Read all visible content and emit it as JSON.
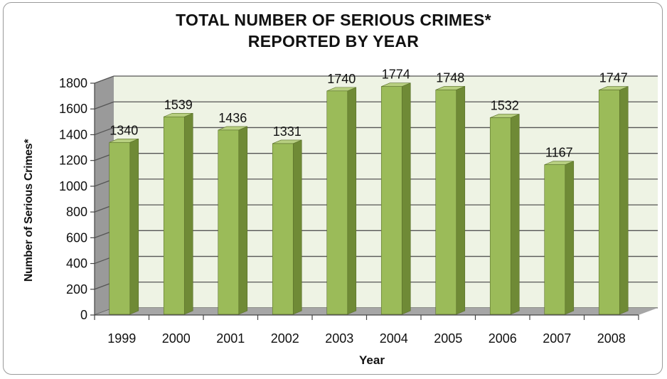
{
  "chart_data": {
    "type": "bar",
    "title": "TOTAL NUMBER OF SERIOUS CRIMES*",
    "subtitle": "REPORTED BY YEAR",
    "xlabel": "Year",
    "ylabel": "Number of Serious Crimes*",
    "categories": [
      "1999",
      "2000",
      "2001",
      "2002",
      "2003",
      "2004",
      "2005",
      "2006",
      "2007",
      "2008"
    ],
    "values": [
      1340,
      1539,
      1436,
      1331,
      1740,
      1774,
      1748,
      1532,
      1167,
      1747
    ],
    "data_labels": [
      "1340",
      "1539",
      "1436",
      "1331",
      "1740",
      "1774",
      "1748",
      "1532",
      "1167",
      "1747"
    ],
    "ylim": [
      0,
      1800
    ],
    "yticks": [
      0,
      200,
      400,
      600,
      800,
      1000,
      1200,
      1400,
      1600,
      1800
    ],
    "ytick_labels": [
      "0",
      "200",
      "400",
      "600",
      "800",
      "1000",
      "1200",
      "1400",
      "1600",
      "1800"
    ],
    "grid": true,
    "legend": "none",
    "style": "3d-column",
    "colors": {
      "bar_front": "#9bbb59",
      "bar_top": "#b7cf80",
      "bar_side": "#6f8a36",
      "wall": "#eef3e4",
      "side_wall": "#9a9a9a",
      "floor": "#a6a6a6",
      "grid": "#555555"
    }
  }
}
